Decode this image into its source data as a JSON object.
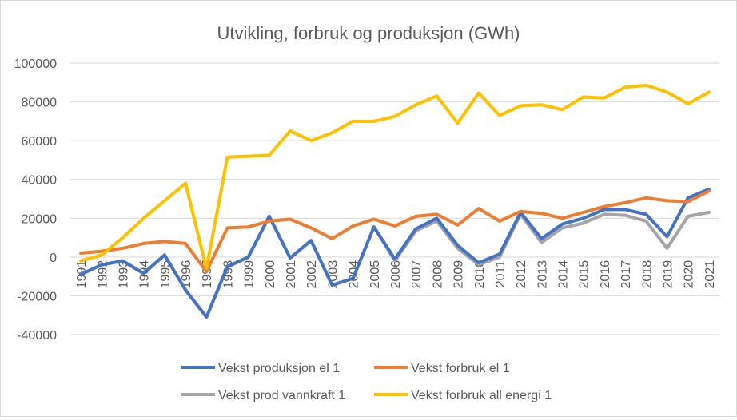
{
  "chart_data": {
    "type": "line",
    "title": "Utvikling, forbruk og produksjon (GWh)",
    "xlabel": "",
    "ylabel": "",
    "ylim": [
      -40000,
      100000
    ],
    "yticks": [
      -40000,
      -20000,
      0,
      20000,
      40000,
      60000,
      80000,
      100000
    ],
    "ytick_labels": [
      "-40000",
      "-20000",
      "0",
      "20000",
      "40000",
      "60000",
      "80000",
      "100000"
    ],
    "grid": true,
    "legend_position": "bottom",
    "categories": [
      "1991",
      "1992",
      "1993",
      "1994",
      "1995",
      "1996",
      "1997",
      "1998",
      "1999",
      "2000",
      "2001",
      "2002",
      "2003",
      "2004",
      "2005",
      "2006",
      "2007",
      "2008",
      "2009",
      "2010",
      "2011",
      "2012",
      "2013",
      "2014",
      "2015",
      "2016",
      "2017",
      "2018",
      "2019",
      "2020",
      "2021"
    ],
    "series": [
      {
        "name": "Vekst produksjon el 1",
        "color": "#4472C4",
        "values": [
          -9000,
          -4000,
          -2000,
          -8500,
          1000,
          -17000,
          -31000,
          -5000,
          0,
          21000,
          -500,
          8500,
          -14500,
          -11000,
          15500,
          -1000,
          14500,
          20000,
          6000,
          -3000,
          1500,
          23000,
          9500,
          17000,
          20000,
          24500,
          24500,
          22000,
          10500,
          30500,
          35000
        ]
      },
      {
        "name": "Vekst forbruk el 1",
        "color": "#ED7D31",
        "values": [
          2000,
          3000,
          4500,
          7000,
          8000,
          7000,
          -7500,
          15000,
          15500,
          18500,
          19500,
          15000,
          9500,
          16000,
          19500,
          16000,
          21000,
          22000,
          16500,
          25000,
          18500,
          23500,
          22500,
          20000,
          23000,
          26000,
          28000,
          30500,
          29000,
          28500,
          34000
        ]
      },
      {
        "name": "Vekst prod vannkraft 1",
        "color": "#A5A5A5",
        "values": [
          -9000,
          -4000,
          -2000,
          -8500,
          1000,
          -17000,
          -31000,
          -5000,
          0,
          21000,
          -500,
          8500,
          -14500,
          -11000,
          15500,
          -2000,
          13500,
          18500,
          4500,
          -4000,
          0,
          22000,
          7500,
          15000,
          17500,
          22000,
          21500,
          18500,
          4500,
          21000,
          23000
        ]
      },
      {
        "name": "Vekst forbruk all energi 1",
        "color": "#FFC000",
        "values": [
          -2000,
          1000,
          10000,
          20000,
          29000,
          38000,
          -6000,
          51500,
          52000,
          52500,
          65000,
          60000,
          64000,
          70000,
          70000,
          72500,
          78500,
          83000,
          69000,
          84500,
          73000,
          78000,
          78500,
          76000,
          82500,
          82000,
          87500,
          88500,
          85000,
          79000,
          85000
        ]
      }
    ]
  }
}
